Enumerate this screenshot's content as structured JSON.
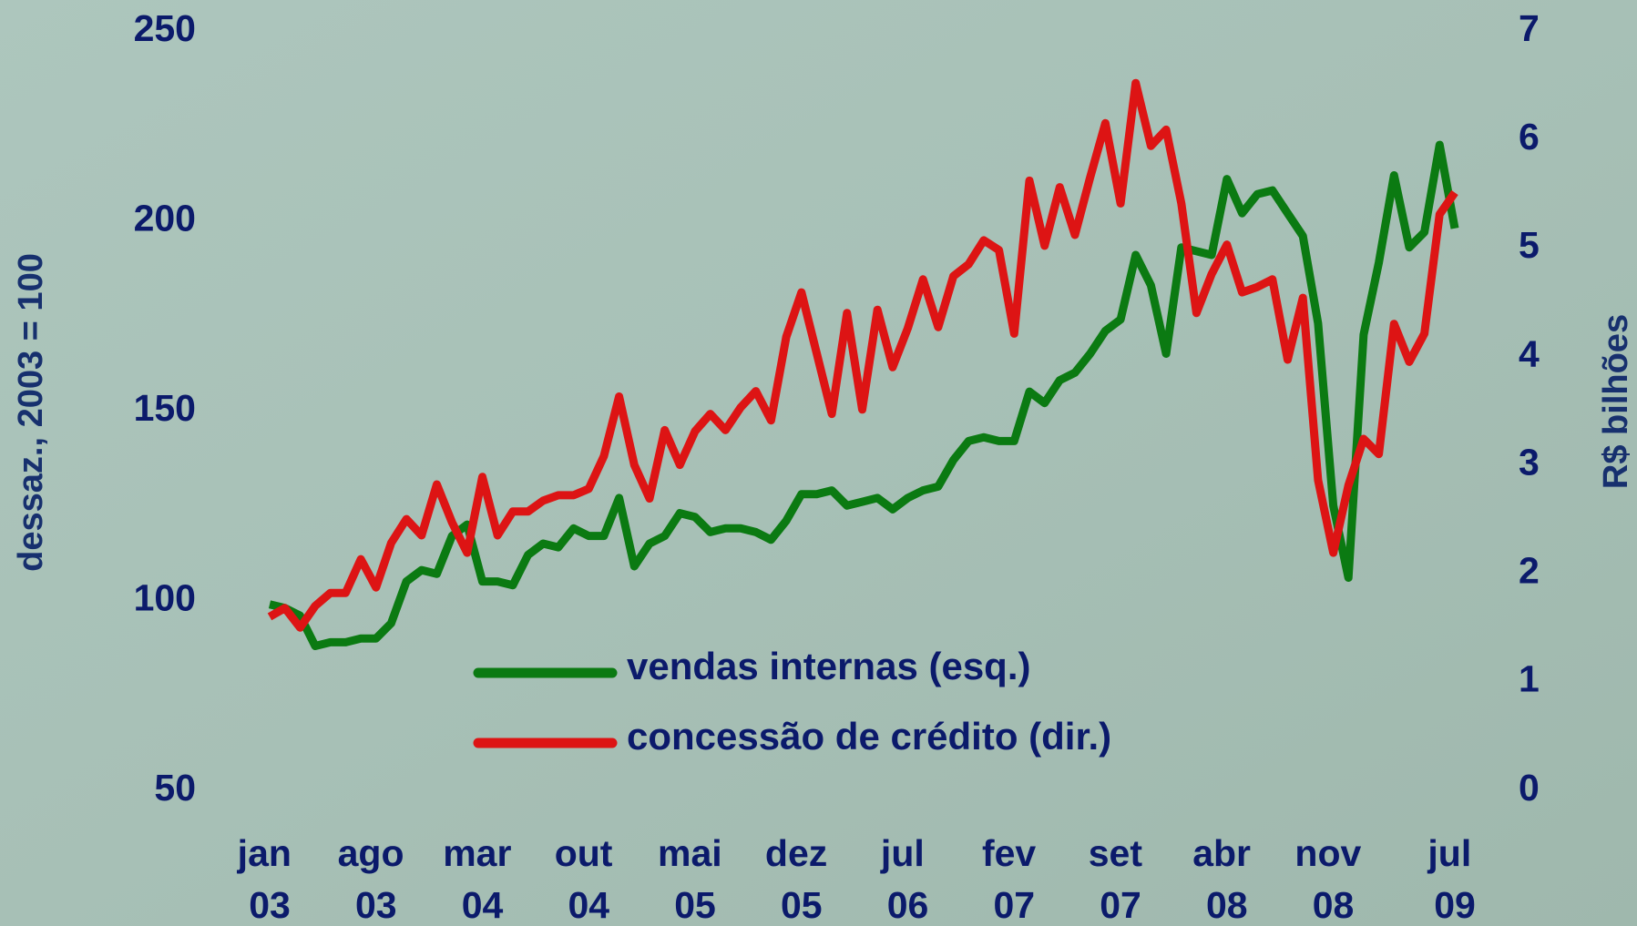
{
  "chart_data": {
    "type": "line",
    "y_label": "dessaz., 2003 = 100",
    "y2_label": "R$ bilhões",
    "categories": [
      "jan 03",
      null,
      null,
      null,
      null,
      null,
      null,
      "ago 03",
      null,
      null,
      null,
      null,
      null,
      null,
      "mar 04",
      null,
      null,
      null,
      null,
      null,
      null,
      "out 04",
      null,
      null,
      null,
      null,
      null,
      null,
      "mai 05",
      null,
      null,
      null,
      null,
      null,
      null,
      "dez 05",
      null,
      null,
      null,
      null,
      null,
      null,
      "jul 06",
      null,
      null,
      null,
      null,
      null,
      null,
      "fev 07",
      null,
      null,
      null,
      null,
      null,
      null,
      "set 07",
      null,
      null,
      null,
      null,
      null,
      null,
      "abr 08",
      null,
      null,
      null,
      null,
      null,
      null,
      "nov 08",
      null,
      null,
      null,
      null,
      null,
      null,
      null,
      "jul 09"
    ],
    "series": [
      {
        "name": "vendas internas (esq.)",
        "color": "#0b7a12",
        "axis": "y",
        "values": [
          99,
          98,
          96,
          88,
          89,
          89,
          90,
          90,
          94,
          105,
          108,
          107,
          117,
          120,
          105,
          105,
          104,
          112,
          115,
          114,
          119,
          117,
          117,
          127,
          109,
          115,
          117,
          123,
          122,
          118,
          119,
          119,
          118,
          116,
          121,
          128,
          128,
          129,
          125,
          126,
          127,
          124,
          127,
          129,
          130,
          137,
          142,
          143,
          142,
          142,
          155,
          152,
          158,
          160,
          165,
          171,
          174,
          191,
          183,
          165,
          193,
          192,
          191,
          211,
          202,
          207,
          208,
          202,
          196,
          173,
          125,
          106,
          170,
          189,
          212,
          193,
          197,
          220,
          198
        ]
      },
      {
        "name": "concessão de crédito (dir.)",
        "color": "#dd1414",
        "axis": "y2",
        "values": [
          1.6,
          1.68,
          1.5,
          1.7,
          1.82,
          1.82,
          2.13,
          1.87,
          2.28,
          2.5,
          2.35,
          2.82,
          2.47,
          2.19,
          2.89,
          2.35,
          2.57,
          2.57,
          2.67,
          2.72,
          2.72,
          2.78,
          3.08,
          3.63,
          3.0,
          2.69,
          3.32,
          3.0,
          3.31,
          3.47,
          3.32,
          3.53,
          3.68,
          3.41,
          4.18,
          4.59,
          4.03,
          3.47,
          4.4,
          3.51,
          4.43,
          3.9,
          4.26,
          4.71,
          4.27,
          4.74,
          4.85,
          5.07,
          4.98,
          4.21,
          5.62,
          5.02,
          5.56,
          5.12,
          5.65,
          6.15,
          5.41,
          6.52,
          5.94,
          6.09,
          5.41,
          4.4,
          4.76,
          5.03,
          4.59,
          4.64,
          4.71,
          3.97,
          4.54,
          2.86,
          2.19,
          2.81,
          3.24,
          3.1,
          4.3,
          3.95,
          4.21,
          5.31,
          5.51
        ]
      }
    ],
    "ylim": [
      50,
      250
    ],
    "yticks": [
      50,
      100,
      150,
      200,
      250
    ],
    "y2lim": [
      0,
      7
    ],
    "y2ticks": [
      0,
      1,
      2,
      3,
      4,
      5,
      6,
      7
    ],
    "grid": false
  }
}
